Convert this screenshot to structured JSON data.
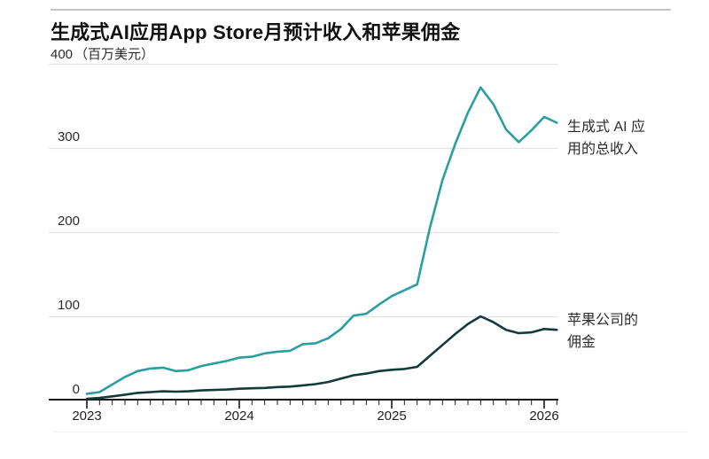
{
  "header": {
    "title": "生成式AI应用App Store月预计收入和苹果佣金"
  },
  "y_axis": {
    "top_value": "400",
    "unit": "（百万美元）",
    "ticks": [
      "300",
      "200",
      "100",
      "0"
    ]
  },
  "x_axis": {
    "year_labels": [
      "2023",
      "2024",
      "2025",
      "2026"
    ]
  },
  "annotations": {
    "revenue_line1": "生成式 AI 应",
    "revenue_line2": "用的总收入",
    "commission_line1": "苹果公司的",
    "commission_line2": "佣金"
  },
  "colors": {
    "revenue": "#2b9ea0",
    "commission": "#123b3a",
    "grid": "#e3e3e3",
    "axis": "#1a1a1a"
  },
  "chart_data": {
    "type": "line",
    "title": "生成式AI应用App Store月预计收入和苹果佣金",
    "ylabel": "百万美元",
    "ylim": [
      0,
      400
    ],
    "y_gridlines": [
      400,
      300,
      200,
      100
    ],
    "grid": "horizontal-only",
    "legend_position": "right-line-annotations",
    "x": [
      "2023-01",
      "2023-02",
      "2023-03",
      "2023-04",
      "2023-05",
      "2023-06",
      "2023-07",
      "2023-08",
      "2023-09",
      "2023-10",
      "2023-11",
      "2023-12",
      "2024-01",
      "2024-02",
      "2024-03",
      "2024-04",
      "2024-05",
      "2024-06",
      "2024-07",
      "2024-08",
      "2024-09",
      "2024-10",
      "2024-11",
      "2024-12",
      "2025-01",
      "2025-02",
      "2025-03",
      "2025-04",
      "2025-05",
      "2025-06",
      "2025-07",
      "2025-08",
      "2025-09",
      "2025-10",
      "2025-11",
      "2025-12",
      "2026-01",
      "2026-02"
    ],
    "x_tick_labels": [
      "2023",
      "2024",
      "2025",
      "2026"
    ],
    "series": [
      {
        "name": "生成式 AI 应用的总收入",
        "color": "#2b9ea0",
        "values": [
          8,
          10,
          19,
          28,
          35,
          38,
          39,
          35,
          36,
          41,
          44,
          47,
          51,
          52,
          56,
          58,
          59,
          67,
          68,
          74,
          85,
          101,
          103,
          114,
          124,
          131,
          138,
          205,
          262,
          305,
          342,
          372,
          352,
          322,
          307,
          321,
          337,
          330
        ]
      },
      {
        "name": "苹果公司的佣金",
        "color": "#123b3a",
        "values": [
          2,
          3,
          5,
          7,
          9,
          10,
          11,
          10.5,
          11,
          12,
          12.5,
          13,
          14,
          14.5,
          15,
          16,
          16.5,
          18,
          19.5,
          22,
          26,
          30,
          32,
          35,
          36.5,
          37.5,
          40,
          53,
          66,
          79,
          91,
          100,
          93,
          84,
          80,
          81,
          85,
          84
        ]
      }
    ]
  }
}
